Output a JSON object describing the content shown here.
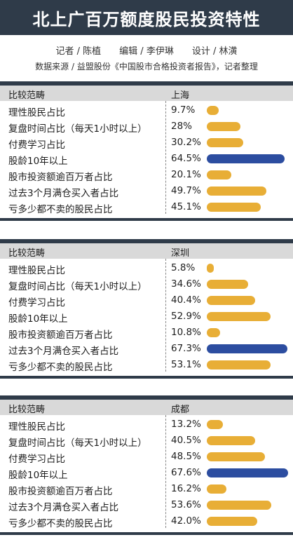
{
  "header": {
    "title": "北上广百万额度股民投资特性"
  },
  "credits": {
    "reporter": "记者 / 陈植",
    "editor": "编辑 / 李伊琳",
    "design": "设计 / 林潢"
  },
  "source": "数据来源 / 益盟股份《中国股市合格投资者报告》，记者整理",
  "colors": {
    "accent_bar": "#e8ae36",
    "highlight_bar": "#2c4da0",
    "dark": "#2f3b49",
    "header_bg": "#d9d9d9"
  },
  "chart_data": [
    {
      "type": "bar",
      "header_label": "比较范畴",
      "city": "上海",
      "categories": [
        "理性股民占比",
        "复盘时间占比（每天1小时以上）",
        "付费学习占比",
        "股龄10年以上",
        "股市投资额逾百万者占比",
        "过去3个月满仓买入者占比",
        "亏多少都不卖的股民占比"
      ],
      "value_labels": [
        "9.7%",
        "28%",
        "30.2%",
        "64.5%",
        "20.1%",
        "49.7%",
        "45.1%"
      ],
      "values": [
        9.7,
        28,
        30.2,
        64.5,
        20.1,
        49.7,
        45.1
      ],
      "highlight_index": 3
    },
    {
      "type": "bar",
      "header_label": "比较范畴",
      "city": "深圳",
      "categories": [
        "理性股民占比",
        "复盘时间占比（每天1小时以上）",
        "付费学习占比",
        "股龄10年以上",
        "股市投资额逾百万者占比",
        "过去3个月满仓买入者占比",
        "亏多少都不卖的股民占比"
      ],
      "value_labels": [
        "5.8%",
        "34.6%",
        "40.4%",
        "52.9%",
        "10.8%",
        "67.3%",
        "53.1%"
      ],
      "values": [
        5.8,
        34.6,
        40.4,
        52.9,
        10.8,
        67.3,
        53.1
      ],
      "highlight_index": 5
    },
    {
      "type": "bar",
      "header_label": "比较范畴",
      "city": "成都",
      "categories": [
        "理性股民占比",
        "复盘时间占比（每天1小时以上）",
        "付费学习占比",
        "股龄10年以上",
        "股市投资额逾百万者占比",
        "过去3个月满仓买入者占比",
        "亏多少都不卖的股民占比"
      ],
      "value_labels": [
        "13.2%",
        "40.5%",
        "48.5%",
        "67.6%",
        "16.2%",
        "53.6%",
        "42.0%"
      ],
      "values": [
        13.2,
        40.5,
        48.5,
        67.6,
        16.2,
        53.6,
        42.0
      ],
      "highlight_index": 3
    }
  ]
}
